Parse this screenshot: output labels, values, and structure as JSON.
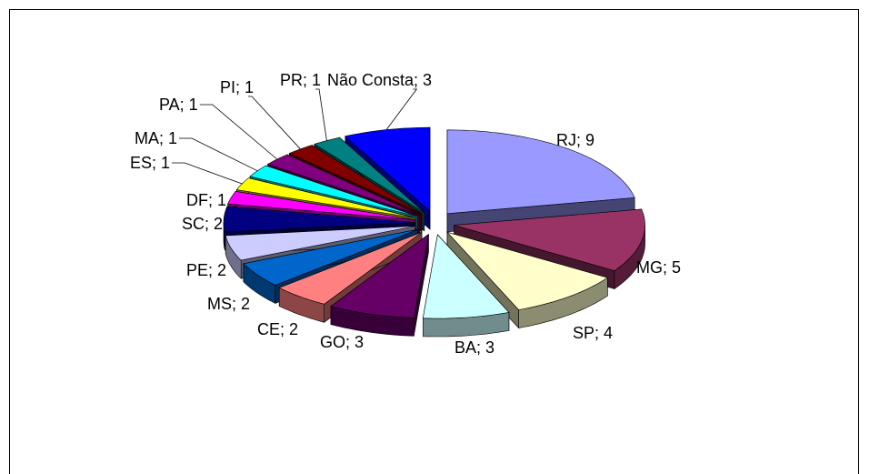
{
  "chart_data": {
    "type": "pie3d",
    "values": [
      9,
      5,
      4,
      3,
      3,
      2,
      2,
      2,
      2,
      1,
      1,
      1,
      1,
      1,
      1,
      3
    ],
    "value_labels": [
      "RJ; 9",
      "MG; 5",
      "SP; 4",
      "BA; 3",
      "GO; 3",
      "CE; 2",
      "MS; 2",
      "PE; 2",
      "SC; 2",
      "DF; 1",
      "ES; 1",
      "MA; 1",
      "PA; 1",
      "PI; 1",
      "PR; 1",
      "Não Consta; 3"
    ],
    "colors": [
      "#9999ff",
      "#993366",
      "#ffffcc",
      "#ccffff",
      "#660066",
      "#ff8080",
      "#0066cc",
      "#ccccff",
      "#000080",
      "#ff00ff",
      "#ffff00",
      "#00ffff",
      "#800080",
      "#800000",
      "#008080",
      "#0000ff"
    ]
  }
}
